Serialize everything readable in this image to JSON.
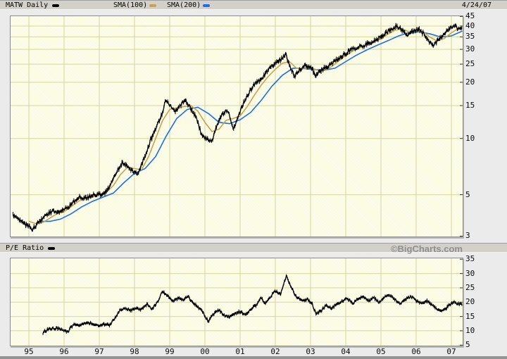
{
  "header": {
    "legend": [
      {
        "label": "MATW Daily",
        "swatch": "#000000"
      },
      {
        "label": "SMA(100)",
        "swatch": "#c9a24b"
      },
      {
        "label": "SMA(200)",
        "swatch": "#1d6fe8"
      }
    ],
    "date": "4/24/07"
  },
  "pe_header": {
    "label": "P/E Ratio",
    "swatch": "#000000",
    "watermark": "©BigCharts.com"
  },
  "colors": {
    "page_bg": "#ebebeb",
    "bar_bg": "#d2d0c9",
    "plot_bg": "#fbfbe2",
    "grid": "#d5d5a2",
    "border": "#8a8a8a",
    "tick": "#333333",
    "price": "#000000",
    "sma100": "#c9a24b",
    "sma200": "#1d6fe8",
    "watermark": "#8f8f8f"
  },
  "chart_data": [
    {
      "type": "line",
      "title": "MATW Daily",
      "yscale": "log",
      "ylim": [
        3,
        45
      ],
      "yticks": [
        45,
        40,
        35,
        30,
        25,
        20,
        15,
        10,
        5,
        3
      ],
      "xlim": [
        1994.5,
        2007.32
      ],
      "xtick_labels": [
        "95",
        "96",
        "97",
        "98",
        "99",
        "00",
        "01",
        "02",
        "03",
        "04",
        "05",
        "06",
        "07"
      ],
      "xtick_pos": [
        1995,
        1996,
        1997,
        1998,
        1999,
        2000,
        2001,
        2002,
        2003,
        2004,
        2005,
        2006,
        2007
      ],
      "grid": true,
      "legend_position": "top",
      "series": [
        {
          "name": "MATW close",
          "color": "#000000",
          "style": "bars",
          "x": [
            1994.55,
            1994.7,
            1994.85,
            1995.0,
            1995.1,
            1995.25,
            1995.4,
            1995.55,
            1995.7,
            1995.85,
            1996.0,
            1996.15,
            1996.3,
            1996.45,
            1996.6,
            1996.75,
            1996.9,
            1997.05,
            1997.2,
            1997.35,
            1997.5,
            1997.65,
            1997.8,
            1997.95,
            1998.1,
            1998.2,
            1998.35,
            1998.5,
            1998.65,
            1998.8,
            1998.9,
            1999.0,
            1999.15,
            1999.3,
            1999.45,
            1999.6,
            1999.75,
            1999.9,
            2000.05,
            2000.2,
            2000.35,
            2000.5,
            2000.65,
            2000.8,
            2000.95,
            2001.1,
            2001.25,
            2001.4,
            2001.55,
            2001.7,
            2001.85,
            2002.0,
            2002.15,
            2002.3,
            2002.45,
            2002.55,
            2002.7,
            2002.85,
            2003.0,
            2003.15,
            2003.3,
            2003.5,
            2003.7,
            2003.9,
            2004.1,
            2004.3,
            2004.5,
            2004.7,
            2004.85,
            2005.0,
            2005.15,
            2005.3,
            2005.45,
            2005.6,
            2005.75,
            2005.9,
            2006.05,
            2006.2,
            2006.35,
            2006.5,
            2006.65,
            2006.8,
            2006.95,
            2007.1,
            2007.2,
            2007.31
          ],
          "y": [
            3.9,
            3.7,
            3.5,
            3.4,
            3.25,
            3.5,
            3.7,
            3.95,
            4.1,
            4.0,
            4.15,
            4.35,
            4.6,
            4.85,
            4.8,
            4.9,
            5.0,
            5.05,
            5.2,
            5.8,
            6.6,
            7.4,
            7.1,
            6.7,
            6.4,
            7.2,
            8.6,
            10.2,
            11.8,
            13.8,
            16.2,
            15.0,
            14.0,
            15.0,
            16.0,
            14.5,
            13.0,
            10.5,
            10.0,
            9.6,
            12.0,
            13.5,
            14.0,
            11.3,
            13.0,
            15.6,
            17.5,
            19.5,
            20.5,
            22.0,
            24.0,
            25.2,
            26.5,
            28.0,
            23.5,
            21.3,
            23.5,
            24.5,
            24.0,
            21.8,
            23.0,
            24.5,
            26.0,
            27.5,
            29.5,
            30.5,
            31.5,
            32.5,
            33.5,
            35.0,
            37.0,
            38.5,
            40.2,
            38.0,
            35.5,
            37.5,
            38.5,
            36.5,
            33.0,
            31.5,
            34.0,
            36.5,
            38.5,
            40.0,
            38.0,
            39.5
          ]
        },
        {
          "name": "SMA(100)",
          "color": "#c9a24b",
          "style": "smooth",
          "x": [
            1995.0,
            1995.2,
            1995.4,
            1995.6,
            1995.8,
            1996.0,
            1996.2,
            1996.4,
            1996.6,
            1996.8,
            1997.0,
            1997.2,
            1997.4,
            1997.6,
            1997.8,
            1998.0,
            1998.2,
            1998.4,
            1998.6,
            1998.8,
            1999.0,
            1999.2,
            1999.4,
            1999.6,
            1999.8,
            2000.0,
            2000.2,
            2000.4,
            2000.6,
            2000.8,
            2001.0,
            2001.2,
            2001.4,
            2001.6,
            2001.8,
            2002.0,
            2002.2,
            2002.4,
            2002.6,
            2002.8,
            2003.0,
            2003.2,
            2003.4,
            2003.6,
            2003.8,
            2004.0,
            2004.2,
            2004.4,
            2004.6,
            2004.8,
            2005.0,
            2005.2,
            2005.4,
            2005.6,
            2005.8,
            2006.0,
            2006.2,
            2006.4,
            2006.6,
            2006.8,
            2007.0,
            2007.2,
            2007.31
          ],
          "y": [
            3.6,
            3.5,
            3.55,
            3.75,
            3.95,
            4.05,
            4.3,
            4.6,
            4.8,
            4.85,
            5.0,
            5.15,
            5.6,
            6.4,
            7.0,
            6.9,
            6.8,
            8.0,
            10.0,
            12.5,
            14.3,
            14.6,
            14.8,
            15.0,
            14.0,
            12.2,
            10.9,
            11.2,
            12.5,
            12.8,
            13.2,
            14.8,
            17.0,
            19.3,
            21.5,
            23.5,
            25.3,
            25.8,
            23.8,
            23.6,
            24.0,
            23.2,
            23.1,
            24.3,
            26.0,
            27.8,
            29.4,
            30.6,
            31.7,
            32.8,
            34.2,
            36.2,
            38.0,
            38.6,
            37.2,
            37.6,
            37.2,
            34.8,
            33.2,
            34.3,
            36.8,
            38.8,
            39.2
          ]
        },
        {
          "name": "SMA(200)",
          "color": "#1d6fe8",
          "style": "smooth",
          "x": [
            1995.3,
            1995.6,
            1995.9,
            1996.2,
            1996.5,
            1996.8,
            1997.1,
            1997.4,
            1997.7,
            1998.0,
            1998.3,
            1998.6,
            1998.9,
            1999.2,
            1999.5,
            1999.8,
            2000.1,
            2000.4,
            2000.7,
            2001.0,
            2001.3,
            2001.6,
            2001.9,
            2002.2,
            2002.5,
            2002.8,
            2003.1,
            2003.4,
            2003.7,
            2004.0,
            2004.3,
            2004.6,
            2004.9,
            2005.2,
            2005.5,
            2005.8,
            2006.1,
            2006.4,
            2006.7,
            2007.0,
            2007.31
          ],
          "y": [
            3.6,
            3.6,
            3.7,
            3.95,
            4.3,
            4.6,
            4.85,
            5.1,
            5.8,
            6.5,
            6.9,
            8.0,
            10.3,
            12.8,
            14.3,
            14.7,
            13.6,
            12.2,
            12.0,
            12.6,
            13.8,
            16.0,
            19.0,
            21.8,
            23.8,
            23.7,
            23.4,
            23.2,
            23.8,
            25.8,
            27.9,
            29.8,
            31.6,
            33.4,
            35.4,
            36.9,
            37.2,
            36.3,
            34.9,
            35.4,
            37.6
          ]
        }
      ]
    },
    {
      "type": "line",
      "title": "P/E Ratio",
      "yscale": "linear",
      "ylim": [
        5,
        35
      ],
      "yticks": [
        35,
        30,
        25,
        20,
        15,
        10,
        5
      ],
      "xlim": [
        1994.5,
        2007.32
      ],
      "grid": true,
      "series": [
        {
          "name": "P/E",
          "color": "#000000",
          "style": "bars",
          "x": [
            1995.4,
            1995.55,
            1995.7,
            1995.85,
            1996.0,
            1996.1,
            1996.28,
            1996.4,
            1996.55,
            1996.7,
            1996.85,
            1997.0,
            1997.15,
            1997.3,
            1997.45,
            1997.6,
            1997.75,
            1997.9,
            1998.05,
            1998.2,
            1998.35,
            1998.5,
            1998.65,
            1998.8,
            1998.9,
            1999.0,
            1999.1,
            1999.25,
            1999.4,
            1999.5,
            1999.65,
            1999.8,
            1999.95,
            2000.1,
            2000.25,
            2000.4,
            2000.55,
            2000.7,
            2000.85,
            2001.0,
            2001.15,
            2001.3,
            2001.45,
            2001.6,
            2001.7,
            2001.85,
            2002.0,
            2002.15,
            2002.32,
            2002.4,
            2002.5,
            2002.6,
            2002.75,
            2002.9,
            2003.05,
            2003.15,
            2003.3,
            2003.45,
            2003.6,
            2003.75,
            2003.9,
            2004.05,
            2004.2,
            2004.35,
            2004.5,
            2004.65,
            2004.8,
            2004.95,
            2005.1,
            2005.25,
            2005.4,
            2005.55,
            2005.7,
            2005.85,
            2006.0,
            2006.15,
            2006.3,
            2006.45,
            2006.6,
            2006.75,
            2006.9,
            2007.05,
            2007.15,
            2007.31
          ],
          "y": [
            9.3,
            10.5,
            11.0,
            10.8,
            10.2,
            9.6,
            12.4,
            11.8,
            12.2,
            12.8,
            12.0,
            11.9,
            12.2,
            12.0,
            14.5,
            17.5,
            17.8,
            17.2,
            17.8,
            17.4,
            19.3,
            17.5,
            20.0,
            23.8,
            22.5,
            21.5,
            20.3,
            21.5,
            20.8,
            22.2,
            20.0,
            18.3,
            16.3,
            13.2,
            16.0,
            17.2,
            15.5,
            14.8,
            16.0,
            16.8,
            15.6,
            17.5,
            19.0,
            21.5,
            19.5,
            21.7,
            23.9,
            22.8,
            29.3,
            26.4,
            24.2,
            21.7,
            20.5,
            21.0,
            19.5,
            15.8,
            17.0,
            19.0,
            17.8,
            19.3,
            20.2,
            21.5,
            19.5,
            21.0,
            22.0,
            20.5,
            21.5,
            20.0,
            21.8,
            22.3,
            21.0,
            19.5,
            21.0,
            22.0,
            20.5,
            19.8,
            20.5,
            19.0,
            17.5,
            16.8,
            18.5,
            20.0,
            19.5,
            19.3
          ]
        }
      ]
    }
  ]
}
